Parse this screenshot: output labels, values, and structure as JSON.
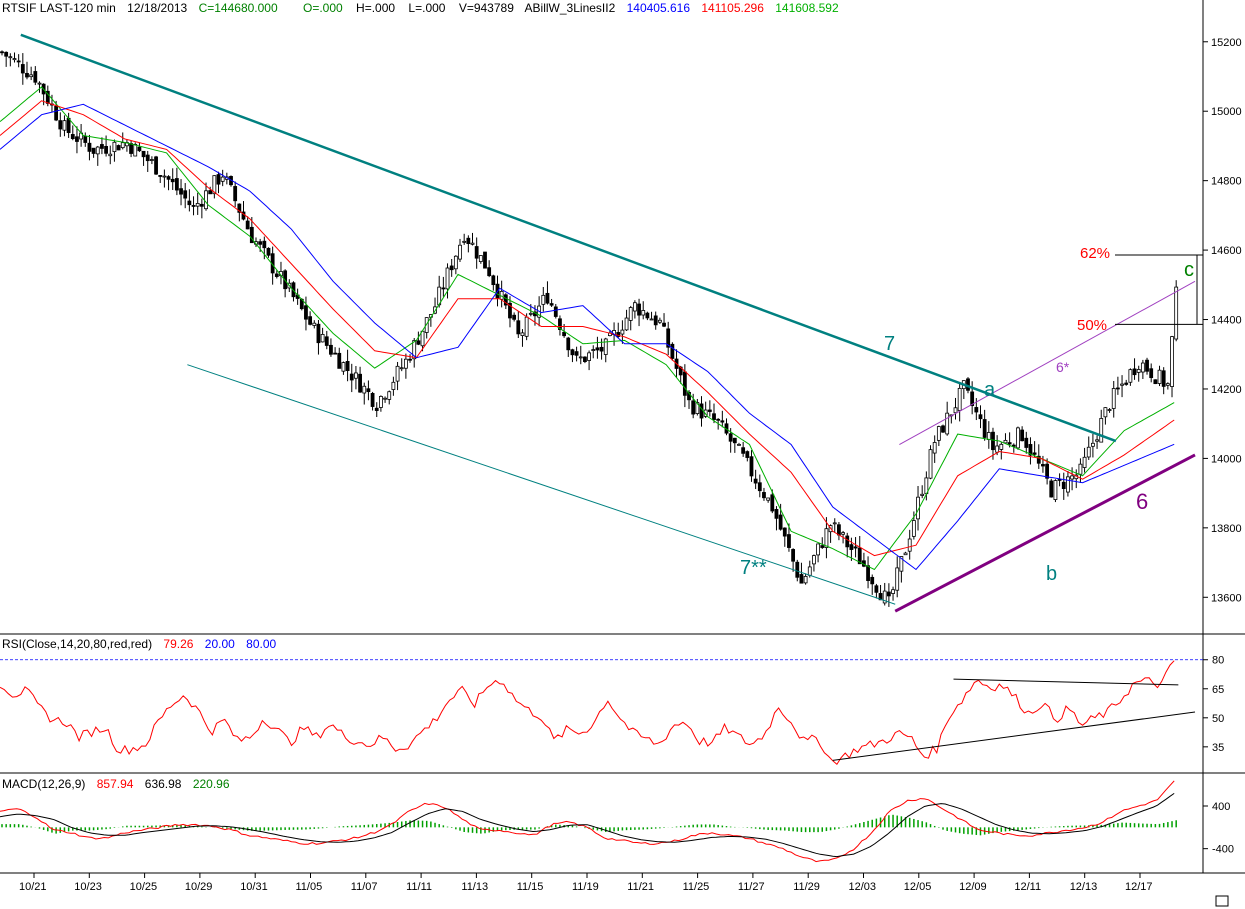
{
  "header": {
    "symbol": "RTSIF LAST-120 min",
    "date": "12/18/2013",
    "close": "C=144680.000",
    "open": "O=.000",
    "high": "H=.000",
    "low": "L=.000",
    "volume": "V=943789",
    "study": "ABillW_3LinesII2",
    "line_blue": "140405.616",
    "line_red": "141105.296",
    "line_green": "141608.592"
  },
  "rsi_header": {
    "label": "RSI(Close,14,20,80,red,red)",
    "value": "79.26",
    "low": "20.00",
    "high": "80.00"
  },
  "macd_header": {
    "label": "MACD(12,26,9)",
    "macd": "857.94",
    "signal": "636.98",
    "hist": "220.96"
  },
  "annotations": {
    "fib62": "62%",
    "fib50": "50%",
    "wave_c": "c",
    "wave_a": "a",
    "wave_b": "b",
    "line7": "7",
    "line7ss": "7**",
    "line6": "6",
    "line6s": "6*"
  },
  "colors": {
    "channel": "#008080",
    "support": "#800080",
    "fib": "#ff0000",
    "blue_line": "#0000ff",
    "red_line": "#ff0000",
    "green_line": "#00b000",
    "rsi": "#ff0000",
    "macd": "#ff0000",
    "signal": "#000000",
    "hist": "#00a000"
  },
  "chart_data": [
    {
      "type": "candlestick",
      "title": "RTSIF LAST-120 min",
      "ylim": [
        135500,
        152500
      ],
      "yticks": [
        "15200",
        "15000",
        "14800",
        "14600",
        "14400",
        "14200",
        "14000",
        "13800",
        "13600"
      ],
      "xticks": [
        "10/21",
        "10/23",
        "10/25",
        "10/29",
        "10/31",
        "11/05",
        "11/07",
        "11/11",
        "11/13",
        "11/15",
        "11/19",
        "11/21",
        "11/25",
        "11/27",
        "11/29",
        "12/03",
        "12/05",
        "12/09",
        "12/11",
        "12/13",
        "12/17"
      ],
      "close_path": [
        [
          0,
          151700
        ],
        [
          8,
          151000
        ],
        [
          15,
          149500
        ],
        [
          22,
          148900
        ],
        [
          30,
          149100
        ],
        [
          38,
          148300
        ],
        [
          46,
          147200
        ],
        [
          53,
          148200
        ],
        [
          60,
          146400
        ],
        [
          68,
          145000
        ],
        [
          75,
          143700
        ],
        [
          82,
          142700
        ],
        [
          90,
          141600
        ],
        [
          97,
          142800
        ],
        [
          104,
          144400
        ],
        [
          111,
          146500
        ],
        [
          117,
          145400
        ],
        [
          124,
          143500
        ],
        [
          131,
          144700
        ],
        [
          138,
          142800
        ],
        [
          145,
          143200
        ],
        [
          152,
          144400
        ],
        [
          158,
          143900
        ],
        [
          165,
          141600
        ],
        [
          172,
          141000
        ],
        [
          178,
          140000
        ],
        [
          185,
          138600
        ],
        [
          192,
          136400
        ],
        [
          199,
          138100
        ],
        [
          206,
          137100
        ],
        [
          213,
          135800
        ],
        [
          217,
          137400
        ],
        [
          224,
          140500
        ],
        [
          231,
          142000
        ],
        [
          238,
          140300
        ],
        [
          245,
          140700
        ],
        [
          252,
          139100
        ],
        [
          259,
          139600
        ],
        [
          266,
          141600
        ],
        [
          273,
          142800
        ],
        [
          280,
          142100
        ],
        [
          282,
          144700
        ]
      ],
      "moving_averages": [
        {
          "name": "141608.592",
          "color": "#00b000",
          "path": [
            [
              0,
              149700
            ],
            [
              10,
              150700
            ],
            [
              20,
              149300
            ],
            [
              30,
              149100
            ],
            [
              40,
              148800
            ],
            [
              50,
              147300
            ],
            [
              60,
              146400
            ],
            [
              70,
              144900
            ],
            [
              80,
              143600
            ],
            [
              90,
              142600
            ],
            [
              100,
              143400
            ],
            [
              110,
              145300
            ],
            [
              120,
              144700
            ],
            [
              130,
              144100
            ],
            [
              140,
              143300
            ],
            [
              150,
              143400
            ],
            [
              160,
              142700
            ],
            [
              170,
              141200
            ],
            [
              180,
              140400
            ],
            [
              190,
              137900
            ],
            [
              200,
              137400
            ],
            [
              210,
              136800
            ],
            [
              220,
              138400
            ],
            [
              230,
              140700
            ],
            [
              240,
              140500
            ],
            [
              250,
              140000
            ],
            [
              260,
              139500
            ],
            [
              270,
              140800
            ],
            [
              282,
              141608
            ]
          ]
        },
        {
          "name": "141105.296",
          "color": "#ff0000",
          "path": [
            [
              0,
              149300
            ],
            [
              10,
              150300
            ],
            [
              20,
              149900
            ],
            [
              30,
              149200
            ],
            [
              40,
              148900
            ],
            [
              50,
              147800
            ],
            [
              60,
              146900
            ],
            [
              70,
              145600
            ],
            [
              80,
              144300
            ],
            [
              90,
              143100
            ],
            [
              100,
              142900
            ],
            [
              110,
              144600
            ],
            [
              120,
              144600
            ],
            [
              130,
              143800
            ],
            [
              140,
              143800
            ],
            [
              150,
              143500
            ],
            [
              160,
              143000
            ],
            [
              170,
              141900
            ],
            [
              180,
              140700
            ],
            [
              190,
              139600
            ],
            [
              200,
              137900
            ],
            [
              210,
              137200
            ],
            [
              220,
              137500
            ],
            [
              230,
              139500
            ],
            [
              240,
              140200
            ],
            [
              250,
              140000
            ],
            [
              260,
              139400
            ],
            [
              270,
              140100
            ],
            [
              282,
              141105
            ]
          ]
        },
        {
          "name": "140405.616",
          "color": "#0000ff",
          "path": [
            [
              0,
              148900
            ],
            [
              10,
              149900
            ],
            [
              20,
              150200
            ],
            [
              30,
              149600
            ],
            [
              40,
              149000
            ],
            [
              50,
              148400
            ],
            [
              60,
              147700
            ],
            [
              70,
              146600
            ],
            [
              80,
              145100
            ],
            [
              90,
              143900
            ],
            [
              100,
              142900
            ],
            [
              110,
              143200
            ],
            [
              120,
              144900
            ],
            [
              130,
              144200
            ],
            [
              140,
              144400
            ],
            [
              150,
              143300
            ],
            [
              160,
              143300
            ],
            [
              170,
              142500
            ],
            [
              180,
              141300
            ],
            [
              190,
              140400
            ],
            [
              200,
              138600
            ],
            [
              210,
              137700
            ],
            [
              220,
              136800
            ],
            [
              230,
              138200
            ],
            [
              240,
              139700
            ],
            [
              250,
              139500
            ],
            [
              260,
              139300
            ],
            [
              270,
              139800
            ],
            [
              282,
              140405
            ]
          ]
        }
      ],
      "trendlines": {
        "line7": [
          [
            5,
            152200
          ],
          [
            268,
            140500
          ]
        ],
        "line7ss": [
          [
            45,
            142700
          ],
          [
            215,
            135800
          ]
        ],
        "line6": [
          [
            215,
            135600
          ],
          [
            287,
            140100
          ]
        ],
        "line6s": [
          [
            216,
            140400
          ],
          [
            287,
            145100
          ]
        ]
      },
      "fib_levels": [
        {
          "label": "62%",
          "value": 145860
        },
        {
          "label": "50%",
          "value": 143860
        }
      ]
    },
    {
      "type": "line",
      "title": "RSI(Close,14,20,80,red,red)",
      "ylim": [
        22,
        84
      ],
      "yticks": [
        "80",
        "65",
        "50",
        "35"
      ],
      "reference_lines": [
        20,
        80
      ],
      "series": [
        {
          "name": "RSI",
          "color": "#ff0000",
          "values": [
            68,
            62,
            64,
            55,
            49,
            48,
            40,
            43,
            45,
            33,
            34,
            36,
            48,
            57,
            62,
            54,
            43,
            49,
            38,
            40,
            50,
            44,
            37,
            45,
            40,
            47,
            41,
            38,
            36,
            40,
            34,
            36,
            43,
            49,
            59,
            64,
            57,
            67,
            70,
            60,
            54,
            51,
            38,
            44,
            42,
            47,
            60,
            50,
            42,
            39,
            36,
            46,
            48,
            38,
            37,
            45,
            40,
            36,
            42,
            56,
            48,
            37,
            40,
            27,
            30,
            34,
            36,
            38,
            42,
            40,
            30,
            34,
            52,
            60,
            70,
            66,
            67,
            60,
            52,
            58,
            49,
            55,
            46,
            50,
            53,
            60,
            68,
            69,
            67,
            79.26
          ]
        }
      ],
      "trendlines": [
        [
          [
            200,
            28
          ],
          [
            287,
            53
          ]
        ],
        [
          [
            229,
            70
          ],
          [
            283,
            67
          ]
        ]
      ]
    },
    {
      "type": "line",
      "title": "MACD(12,26,9)",
      "ylim": [
        -800,
        700
      ],
      "yticks": [
        "400",
        "-400"
      ],
      "series": [
        {
          "name": "857.94",
          "color": "#ff0000",
          "values": [
            300,
            350,
            200,
            -50,
            -100,
            -200,
            -200,
            -100,
            -50,
            0,
            50,
            50,
            20,
            -50,
            -150,
            -200,
            -250,
            -300,
            -300,
            -250,
            -200,
            -100,
            50,
            300,
            450,
            380,
            150,
            -50,
            -50,
            -100,
            -150,
            50,
            100,
            0,
            -200,
            -250,
            -300,
            -300,
            -250,
            -150,
            -100,
            -150,
            -200,
            -300,
            -400,
            -550,
            -650,
            -600,
            -400,
            -100,
            300,
            500,
            550,
            350,
            150,
            -50,
            -100,
            -150,
            -150,
            -100,
            -50,
            0,
            100,
            300,
            400,
            500,
            857.94
          ]
        },
        {
          "name": "636.98",
          "color": "#000000",
          "values": [
            200,
            250,
            220,
            150,
            0,
            -100,
            -150,
            -150,
            -100,
            -60,
            -20,
            20,
            30,
            10,
            -40,
            -100,
            -170,
            -230,
            -270,
            -280,
            -260,
            -200,
            -100,
            80,
            250,
            350,
            300,
            150,
            50,
            -30,
            -80,
            -40,
            40,
            50,
            -50,
            -160,
            -230,
            -270,
            -280,
            -240,
            -190,
            -170,
            -180,
            -220,
            -300,
            -400,
            -500,
            -550,
            -500,
            -350,
            -100,
            200,
            400,
            450,
            350,
            200,
            50,
            -50,
            -110,
            -120,
            -100,
            -60,
            20,
            150,
            280,
            400,
            636.98
          ]
        }
      ],
      "histogram": [
        {
          "name": "220.96",
          "color": "#00a000"
        }
      ]
    }
  ]
}
